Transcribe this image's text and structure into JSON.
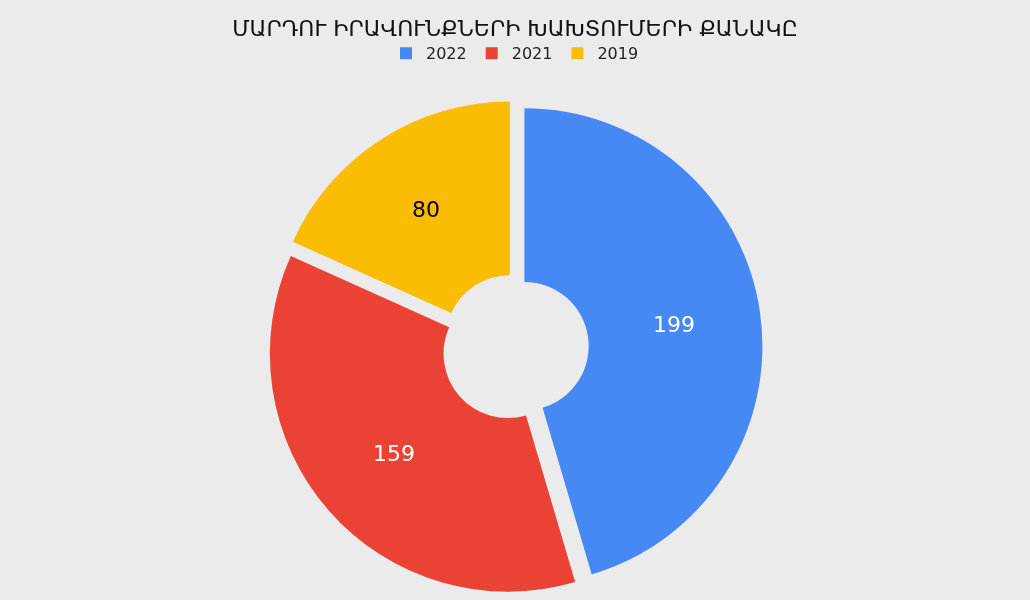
{
  "chart_data": {
    "type": "donut",
    "title": "ՄԱՐԴՈՒ ԻՐԱՎՈՒՆՔՆԵՐԻ ԽԱԽՏՈՒՄԵՐԻ ՔԱՆԱԿԸ",
    "categories": [
      "2022",
      "2021",
      "2019"
    ],
    "values": [
      199,
      159,
      80
    ],
    "colors": [
      "#4688f4",
      "#ea4335",
      "#fbbc04"
    ],
    "data_labels": true,
    "legend": "top"
  }
}
